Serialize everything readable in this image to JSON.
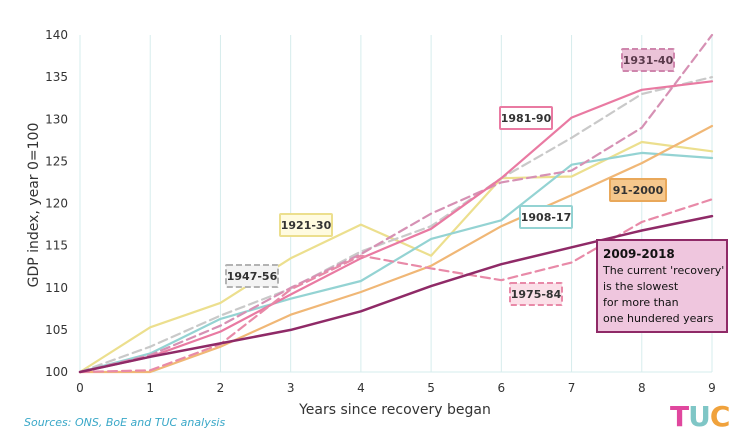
{
  "chart_data": {
    "type": "line",
    "xlabel": "Years since recovery began",
    "ylabel": "GDP index, year 0=100",
    "xlim": [
      0,
      9
    ],
    "ylim": [
      100,
      140
    ],
    "xticks": [
      0,
      1,
      2,
      3,
      4,
      5,
      6,
      7,
      8,
      9
    ],
    "yticks": [
      100,
      105,
      110,
      115,
      120,
      125,
      130,
      135,
      140
    ],
    "grid": "vertical",
    "series": [
      {
        "name": "1921-30",
        "color": "#ecdf8e",
        "dash": false,
        "x": [
          0,
          1,
          2,
          3,
          4,
          5,
          6,
          7,
          8,
          9
        ],
        "y": [
          100,
          105.3,
          108.2,
          113.5,
          117.5,
          113.8,
          123.0,
          123.2,
          127.3,
          126.2
        ]
      },
      {
        "name": "1947-56",
        "color": "#c9c9c9",
        "dash": true,
        "x": [
          0,
          1,
          2,
          3,
          4,
          5,
          6,
          7,
          8,
          9
        ],
        "y": [
          100,
          103.0,
          106.7,
          109.9,
          114.3,
          117.3,
          123.0,
          127.8,
          133.0,
          135.0
        ]
      },
      {
        "name": "1908-17",
        "color": "#94d3d3",
        "dash": false,
        "x": [
          0,
          1,
          2,
          3,
          4,
          5,
          6,
          7,
          8,
          9
        ],
        "y": [
          100,
          102.2,
          106.3,
          108.7,
          110.8,
          115.8,
          118.0,
          124.6,
          126.0,
          125.4
        ]
      },
      {
        "name": "1931-40",
        "color": "#d691b4",
        "dash": true,
        "x": [
          0,
          1,
          2,
          3,
          4,
          5,
          6,
          7,
          8,
          9
        ],
        "y": [
          100,
          102.0,
          105.5,
          110.0,
          114.0,
          118.8,
          122.5,
          123.9,
          129.0,
          140.0
        ]
      },
      {
        "name": "1981-90",
        "color": "#e97aa2",
        "dash": false,
        "x": [
          0,
          1,
          2,
          3,
          4,
          5,
          6,
          7,
          8,
          9
        ],
        "y": [
          100,
          101.8,
          104.8,
          109.2,
          113.5,
          117.0,
          123.0,
          130.2,
          133.5,
          134.5
        ]
      },
      {
        "name": "91-2000",
        "color": "#f0b776",
        "dash": false,
        "x": [
          0,
          1,
          2,
          3,
          4,
          5,
          6,
          7,
          8,
          9
        ],
        "y": [
          100,
          100.0,
          103.0,
          106.8,
          109.5,
          112.6,
          117.3,
          121.0,
          124.8,
          129.2
        ]
      },
      {
        "name": "1975-84",
        "color": "#e88aa8",
        "dash": true,
        "x": [
          0,
          1,
          2,
          3,
          4,
          5,
          6,
          7,
          8,
          9
        ],
        "y": [
          100,
          100.2,
          103.3,
          109.8,
          113.8,
          112.3,
          110.9,
          113.0,
          117.8,
          120.5
        ]
      },
      {
        "name": "2009-2018",
        "color": "#8f2a67",
        "dash": false,
        "width": 2.5,
        "x": [
          0,
          1,
          2,
          3,
          4,
          5,
          6,
          7,
          8,
          9
        ],
        "y": [
          100,
          101.8,
          103.4,
          105.0,
          107.2,
          110.2,
          112.8,
          114.8,
          116.8,
          118.5
        ]
      }
    ],
    "labels": [
      {
        "text": "1931-40",
        "fill": "#ebc3d8",
        "border": "#cf86ad",
        "dashed": true,
        "color": "#5a3a4c"
      },
      {
        "text": "1981-90",
        "fill": "#ffffff",
        "border": "#e97aa2",
        "dashed": false,
        "color": "#333333"
      },
      {
        "text": "1921-30",
        "fill": "#fffbe0",
        "border": "#ecdf8e",
        "dashed": false,
        "color": "#333333"
      },
      {
        "text": "91-2000",
        "fill": "#f5c78c",
        "border": "#e9a85a",
        "dashed": false,
        "color": "#333333"
      },
      {
        "text": "1908-17",
        "fill": "#ffffff",
        "border": "#94d3d3",
        "dashed": false,
        "color": "#333333"
      },
      {
        "text": "1947-56",
        "fill": "#f4f4f4",
        "border": "#b3b3b3",
        "dashed": true,
        "color": "#333333"
      },
      {
        "text": "1975-84",
        "fill": "#fbe0e8",
        "border": "#e88aa8",
        "dashed": true,
        "color": "#333333"
      }
    ],
    "callout": {
      "title": "2009-2018",
      "lines": [
        "The current 'recovery'",
        "is the slowest",
        "for more than",
        "one hundered years"
      ],
      "fill": "#efc6de",
      "border": "#8f2a67"
    }
  },
  "source": "Sources: ONS, BoE and TUC analysis",
  "logo": {
    "letters": [
      "T",
      "U",
      "C"
    ],
    "colors": [
      "#e0479e",
      "#7fc6c6",
      "#f0a23c"
    ]
  }
}
